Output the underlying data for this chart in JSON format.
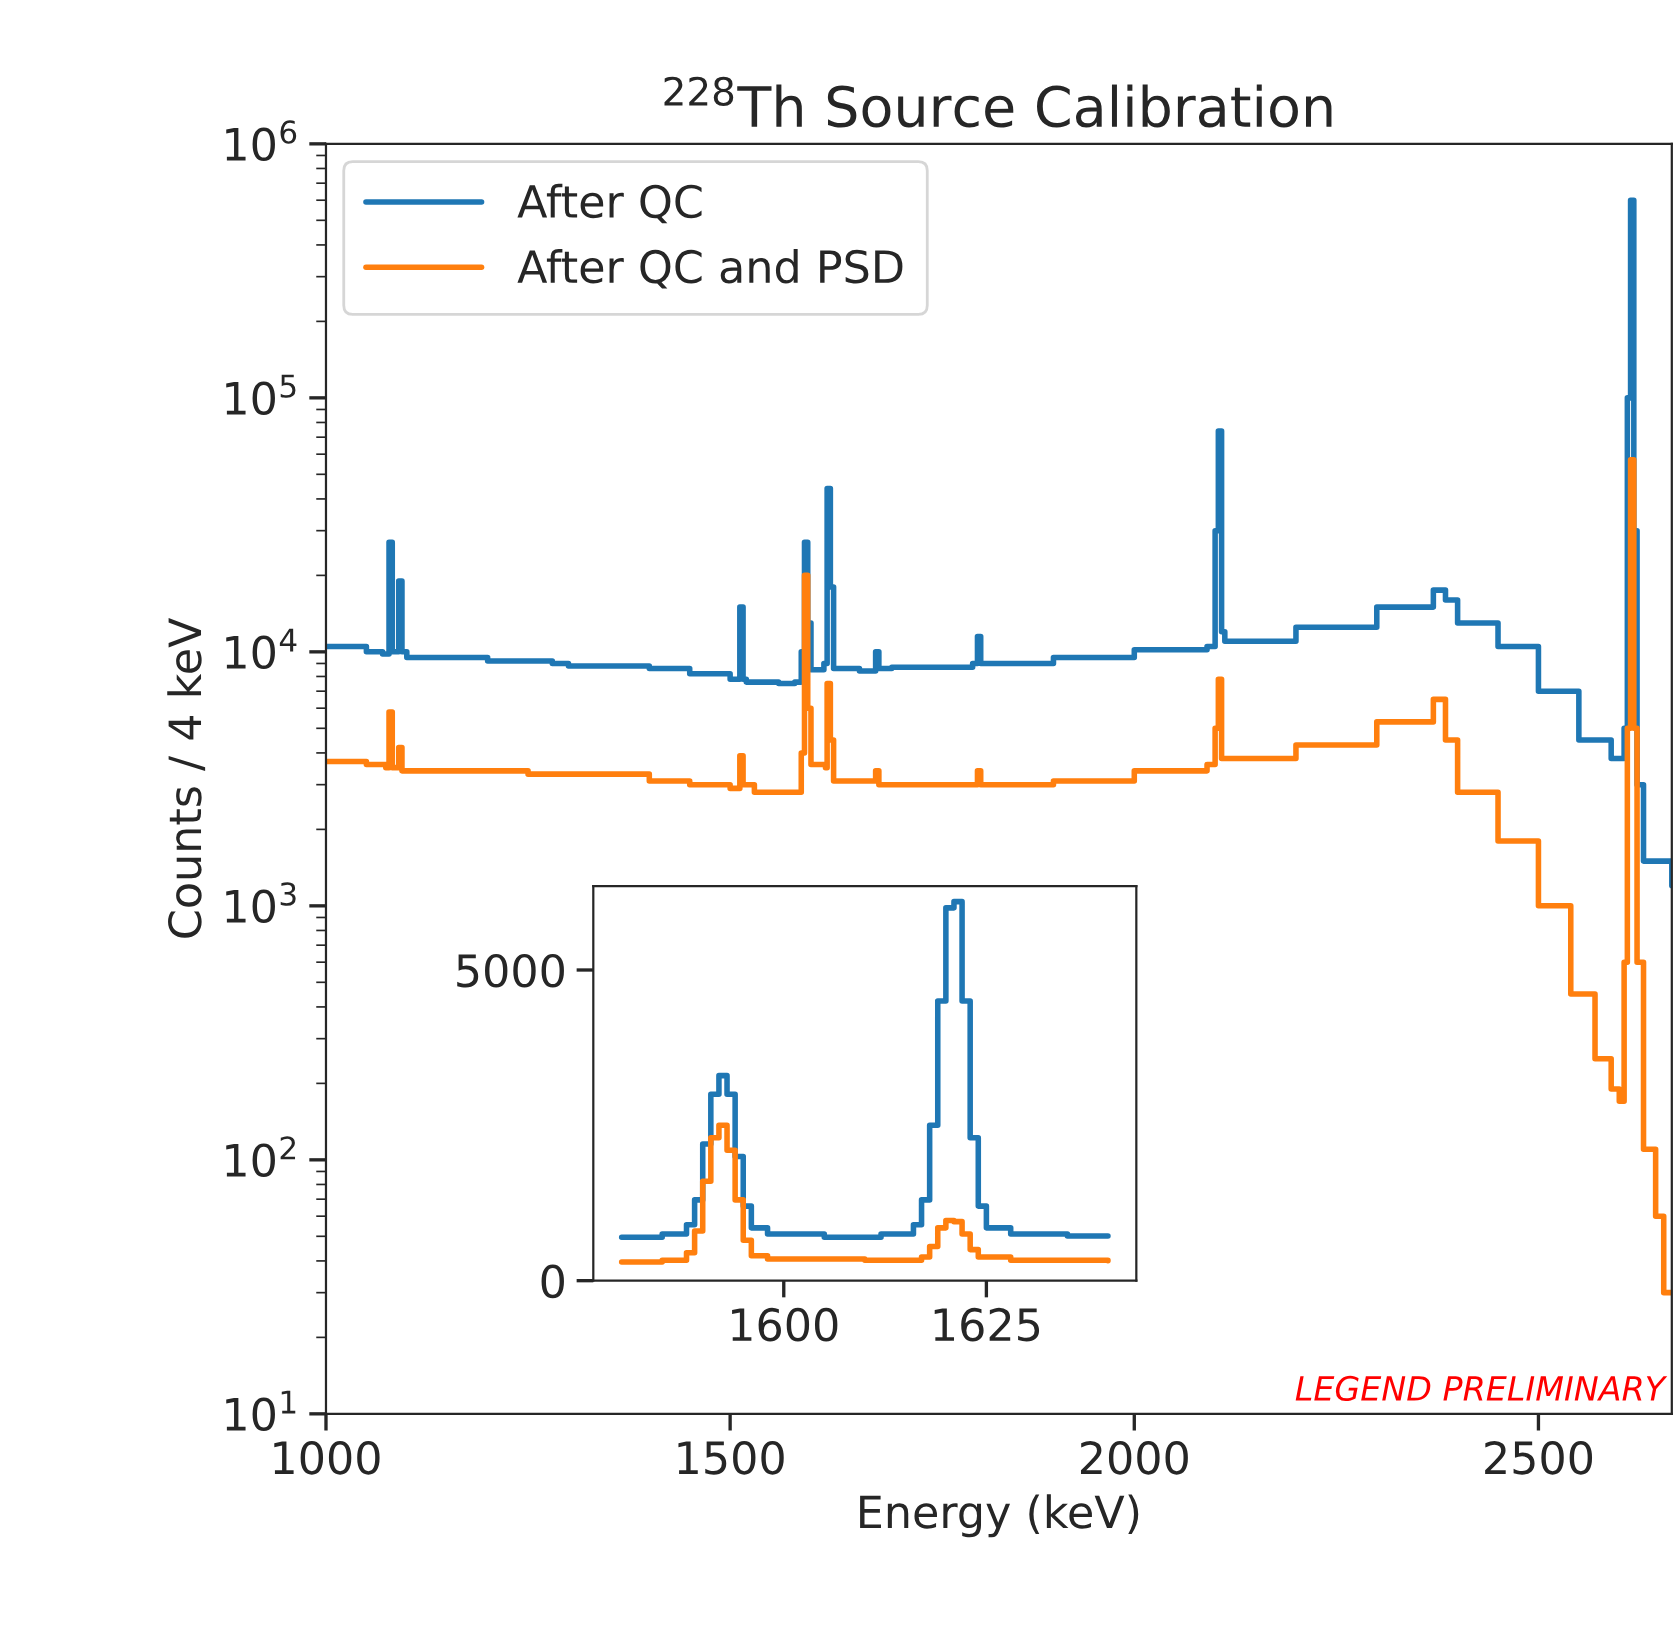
{
  "chart_data": [
    {
      "type": "step",
      "title": "$^{228}$Th Source Calibration",
      "xlabel": "Energy (keV)",
      "ylabel": "Counts / 4 keV",
      "log": "y",
      "legend": "top left",
      "grid": false,
      "xlim": [
        1000,
        2665
      ],
      "xticks": [
        1000,
        1500,
        2000,
        2500
      ],
      "ylim": [
        10,
        1000000
      ],
      "yticks": [
        {
          "value": 10,
          "label": "10$^{1}$"
        },
        {
          "value": 100,
          "label": "10$^{2}$"
        },
        {
          "value": 1000,
          "label": "10$^{3}$"
        },
        {
          "value": 10000,
          "label": "10$^{4}$"
        },
        {
          "value": 100000,
          "label": "10$^{5}$"
        },
        {
          "value": 1000000,
          "label": "10$^{6}$"
        }
      ],
      "annotations": [
        "LEGEND PRELIMINARY"
      ],
      "series": [
        {
          "name": "After QC",
          "color": "#1f77b4",
          "x": [
            1000,
            1050,
            1070,
            1078,
            1082,
            1090,
            1094,
            1100,
            1200,
            1280,
            1300,
            1400,
            1450,
            1500,
            1512,
            1516,
            1520,
            1560,
            1580,
            1588,
            1592,
            1596,
            1600,
            1616,
            1620,
            1624,
            1628,
            1660,
            1680,
            1684,
            1700,
            1800,
            1806,
            1810,
            1900,
            2000,
            2090,
            2100,
            2104,
            2108,
            2112,
            2200,
            2300,
            2370,
            2385,
            2400,
            2450,
            2500,
            2550,
            2590,
            2606,
            2610,
            2614,
            2618,
            2622,
            2630,
            2665
          ],
          "values": [
            10500,
            10000,
            9800,
            27000,
            10000,
            19000,
            10000,
            9500,
            9200,
            9000,
            8800,
            8600,
            8200,
            7800,
            15000,
            7800,
            7600,
            7500,
            7600,
            10000,
            27000,
            13000,
            8500,
            9000,
            44000,
            18000,
            8600,
            8400,
            10000,
            8600,
            8700,
            9000,
            11500,
            9000,
            9500,
            10200,
            10500,
            30000,
            74000,
            12000,
            11000,
            12500,
            15000,
            17500,
            16000,
            13000,
            10500,
            7000,
            4500,
            3800,
            5000,
            100000,
            600000,
            30000,
            3000,
            1500,
            1200
          ]
        },
        {
          "name": "After QC and PSD",
          "color": "#ff7f0e",
          "x": [
            1000,
            1050,
            1074,
            1078,
            1082,
            1090,
            1094,
            1150,
            1250,
            1350,
            1400,
            1450,
            1500,
            1512,
            1516,
            1530,
            1570,
            1588,
            1592,
            1596,
            1600,
            1618,
            1620,
            1624,
            1628,
            1660,
            1680,
            1684,
            1800,
            1806,
            1810,
            1900,
            2000,
            2090,
            2100,
            2104,
            2108,
            2200,
            2300,
            2370,
            2385,
            2400,
            2450,
            2500,
            2540,
            2570,
            2590,
            2600,
            2606,
            2610,
            2614,
            2618,
            2622,
            2630,
            2645,
            2655,
            2665
          ],
          "values": [
            3700,
            3600,
            3500,
            5800,
            3500,
            4200,
            3400,
            3400,
            3300,
            3300,
            3100,
            3000,
            2900,
            3900,
            3000,
            2800,
            2800,
            4000,
            20000,
            6000,
            3600,
            3500,
            7500,
            4500,
            3100,
            3100,
            3400,
            3000,
            3000,
            3400,
            3000,
            3100,
            3400,
            3600,
            5000,
            7800,
            3800,
            4300,
            5300,
            6500,
            4500,
            2800,
            1800,
            1000,
            450,
            250,
            190,
            170,
            600,
            5000,
            57000,
            5000,
            600,
            110,
            60,
            30,
            30
          ]
        }
      ]
    },
    {
      "type": "step",
      "legend": false,
      "grid": false,
      "xlim": [
        1576.5,
        1643.5
      ],
      "xticks": [
        1600,
        1625
      ],
      "ylim": [
        0,
        6350
      ],
      "yticks": [
        0,
        5000
      ],
      "series": [
        {
          "color": "#1f77b4",
          "x": [
            1580,
            1585,
            1588,
            1589,
            1590,
            1591,
            1592,
            1593,
            1594,
            1595,
            1596,
            1598,
            1605,
            1612,
            1616,
            1617,
            1618,
            1619,
            1620,
            1621,
            1622,
            1623,
            1624,
            1625,
            1628,
            1635,
            1640
          ],
          "values": [
            700,
            750,
            900,
            1300,
            2200,
            3000,
            3300,
            3000,
            2000,
            1200,
            850,
            750,
            700,
            750,
            900,
            1300,
            2500,
            4500,
            6000,
            6100,
            4500,
            2300,
            1200,
            850,
            750,
            720,
            720
          ]
        },
        {
          "color": "#ff7f0e",
          "x": [
            1580,
            1585,
            1588,
            1589,
            1590,
            1591,
            1592,
            1593,
            1594,
            1595,
            1596,
            1598,
            1610,
            1617,
            1618,
            1619,
            1620,
            1621,
            1622,
            1623,
            1624,
            1628,
            1640
          ],
          "values": [
            300,
            330,
            450,
            800,
            1600,
            2300,
            2500,
            2100,
            1300,
            650,
            400,
            350,
            330,
            380,
            550,
            850,
            970,
            950,
            750,
            500,
            380,
            330,
            320
          ]
        }
      ]
    }
  ]
}
